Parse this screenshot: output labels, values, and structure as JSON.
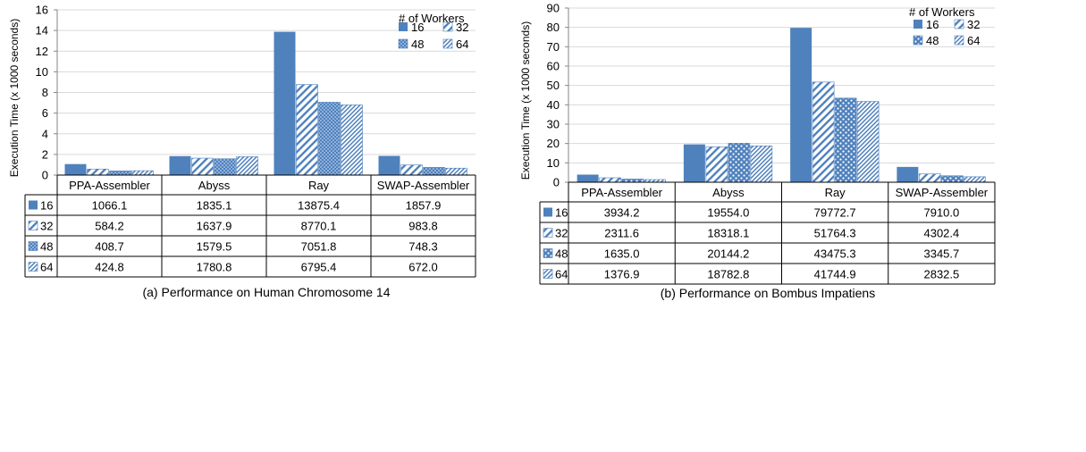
{
  "chart_data": [
    {
      "type": "bar",
      "caption": "(a) Performance on Human Chromosome 14",
      "ylabel": "Execution Time (x 1000 seconds)",
      "ylim": [
        0,
        16
      ],
      "yticks": [
        0,
        2,
        4,
        6,
        8,
        10,
        12,
        14,
        16
      ],
      "ytick_labels": [
        "0",
        "2",
        "4",
        "6",
        "8",
        "10",
        "12",
        "14",
        "16"
      ],
      "grid": true,
      "legend_title": "# of Workers",
      "legend_position": "top-right",
      "categories": [
        "PPA-Assembler",
        "Abyss",
        "Ray",
        "SWAP-Assembler"
      ],
      "series": [
        {
          "name": "16",
          "pattern": "solid",
          "values": [
            1.0661,
            1.8351,
            13.8754,
            1.8579
          ],
          "table": [
            "1066.1",
            "1835.1",
            "13875.4",
            "1857.9"
          ]
        },
        {
          "name": "32",
          "pattern": "wide-diagonal",
          "values": [
            0.5842,
            1.6379,
            8.7701,
            0.9838
          ],
          "table": [
            "584.2",
            "1637.9",
            "8770.1",
            "983.8"
          ]
        },
        {
          "name": "48",
          "pattern": "checker",
          "values": [
            0.4087,
            1.5795,
            7.0518,
            0.7483
          ],
          "table": [
            "408.7",
            "1579.5",
            "7051.8",
            "748.3"
          ]
        },
        {
          "name": "64",
          "pattern": "narrow-diagonal",
          "values": [
            0.4248,
            1.7808,
            6.7954,
            0.672
          ],
          "table": [
            "424.8",
            "1780.8",
            "6795.4",
            "672.0"
          ]
        }
      ]
    },
    {
      "type": "bar",
      "caption": "(b) Performance on Bombus Impatiens",
      "ylabel": "Execution Time (x 1000 seconds)",
      "ylim": [
        0,
        90
      ],
      "yticks": [
        0,
        10,
        20,
        30,
        40,
        50,
        60,
        70,
        80,
        90
      ],
      "ytick_labels": [
        "0",
        "10",
        "20",
        "30",
        "40",
        "50",
        "60",
        "70",
        "80",
        "90"
      ],
      "grid": true,
      "legend_title": "# of Workers",
      "legend_position": "top-right",
      "categories": [
        "PPA-Assembler",
        "Abyss",
        "Ray",
        "SWAP-Assembler"
      ],
      "series": [
        {
          "name": "16",
          "pattern": "solid",
          "values": [
            3.9342,
            19.554,
            79.7727,
            7.91
          ],
          "table": [
            "3934.2",
            "19554.0",
            "79772.7",
            "7910.0"
          ]
        },
        {
          "name": "32",
          "pattern": "wide-diagonal",
          "values": [
            2.3116,
            18.3181,
            51.7643,
            4.3024
          ],
          "table": [
            "2311.6",
            "18318.1",
            "51764.3",
            "4302.4"
          ]
        },
        {
          "name": "48",
          "pattern": "dots",
          "values": [
            1.635,
            20.1442,
            43.4753,
            3.3457
          ],
          "table": [
            "1635.0",
            "20144.2",
            "43475.3",
            "3345.7"
          ]
        },
        {
          "name": "64",
          "pattern": "narrow-diagonal",
          "values": [
            1.3769,
            18.7828,
            41.7449,
            2.8325
          ],
          "table": [
            "1376.9",
            "18782.8",
            "41744.9",
            "2832.5"
          ]
        }
      ]
    }
  ],
  "colors": {
    "bar": "#4f81bd",
    "grid": "#d9d9d9",
    "axis": "#868686",
    "table_border": "#000000"
  }
}
